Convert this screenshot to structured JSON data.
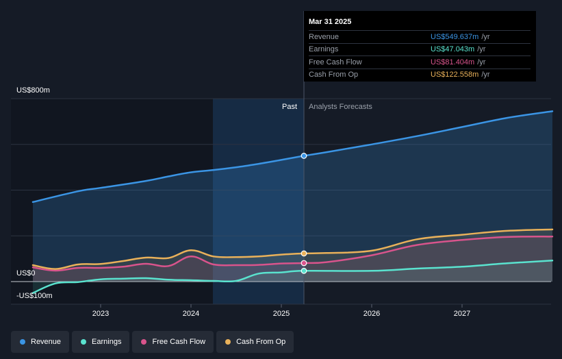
{
  "tooltip": {
    "date": "Mar 31 2025",
    "rows": [
      {
        "label": "Revenue",
        "value": "US$549.637m",
        "unit": "/yr",
        "color": "#3b95e5"
      },
      {
        "label": "Earnings",
        "value": "US$47.043m",
        "unit": "/yr",
        "color": "#5ae3cf"
      },
      {
        "label": "Free Cash Flow",
        "value": "US$81.404m",
        "unit": "/yr",
        "color": "#d9548c"
      },
      {
        "label": "Cash From Op",
        "value": "US$122.558m",
        "unit": "/yr",
        "color": "#e9b15a"
      }
    ]
  },
  "segments": {
    "past": "Past",
    "forecast": "Analysts Forecasts"
  },
  "legend": [
    {
      "label": "Revenue",
      "color": "#3b95e5"
    },
    {
      "label": "Earnings",
      "color": "#5ae3cf"
    },
    {
      "label": "Free Cash Flow",
      "color": "#d9548c"
    },
    {
      "label": "Cash From Op",
      "color": "#e9b15a"
    }
  ],
  "chart_data": {
    "type": "line",
    "title": "",
    "xlabel": "",
    "ylabel": "",
    "y_tick_labels": [
      "US$800m",
      "US$0",
      "-US$100m"
    ],
    "ylim": [
      -100,
      800
    ],
    "x_ticks": [
      {
        "label": "2023",
        "year": 2023.0
      },
      {
        "label": "2024",
        "year": 2024.0
      },
      {
        "label": "2025",
        "year": 2025.0
      },
      {
        "label": "2026",
        "year": 2026.0
      },
      {
        "label": "2027",
        "year": 2027.0
      }
    ],
    "past_end": 2025.25,
    "forecast_start_shade": 2024.25,
    "series": [
      {
        "name": "Revenue",
        "color": "#3b95e5",
        "x": [
          2022.25,
          2022.75,
          2023.0,
          2023.5,
          2023.75,
          2024.0,
          2024.25,
          2024.5,
          2024.75,
          2025.0,
          2025.25,
          2025.5,
          2026.0,
          2026.5,
          2027.0,
          2027.5,
          2028.0
        ],
        "values": [
          348,
          395,
          410,
          440,
          460,
          478,
          488,
          500,
          515,
          532,
          550,
          566,
          600,
          636,
          676,
          716,
          745
        ]
      },
      {
        "name": "Earnings",
        "color": "#5ae3cf",
        "x": [
          2022.25,
          2022.5,
          2022.75,
          2023.0,
          2023.25,
          2023.5,
          2023.75,
          2024.0,
          2024.25,
          2024.5,
          2024.75,
          2025.0,
          2025.25,
          2026.0,
          2026.5,
          2027.0,
          2027.5,
          2028.0
        ],
        "values": [
          -50,
          -8,
          -2,
          10,
          13,
          15,
          8,
          6,
          3,
          3,
          35,
          40,
          47,
          47,
          57,
          65,
          80,
          92
        ]
      },
      {
        "name": "Free Cash Flow",
        "color": "#d9548c",
        "x": [
          2022.25,
          2022.5,
          2022.75,
          2023.0,
          2023.25,
          2023.5,
          2023.75,
          2024.0,
          2024.25,
          2024.5,
          2024.75,
          2025.0,
          2025.25,
          2025.5,
          2026.0,
          2026.5,
          2027.0,
          2027.5,
          2028.0
        ],
        "values": [
          62,
          48,
          60,
          60,
          65,
          78,
          68,
          110,
          75,
          72,
          73,
          79,
          81,
          85,
          115,
          160,
          182,
          195,
          197
        ]
      },
      {
        "name": "Cash From Op",
        "color": "#e9b15a",
        "x": [
          2022.25,
          2022.5,
          2022.75,
          2023.0,
          2023.25,
          2023.5,
          2023.75,
          2024.0,
          2024.25,
          2024.5,
          2024.75,
          2025.0,
          2025.25,
          2025.5,
          2026.0,
          2026.5,
          2027.0,
          2027.5,
          2028.0
        ],
        "values": [
          72,
          55,
          75,
          77,
          90,
          105,
          103,
          137,
          110,
          107,
          110,
          118,
          123,
          125,
          135,
          185,
          205,
          222,
          228
        ]
      }
    ]
  }
}
